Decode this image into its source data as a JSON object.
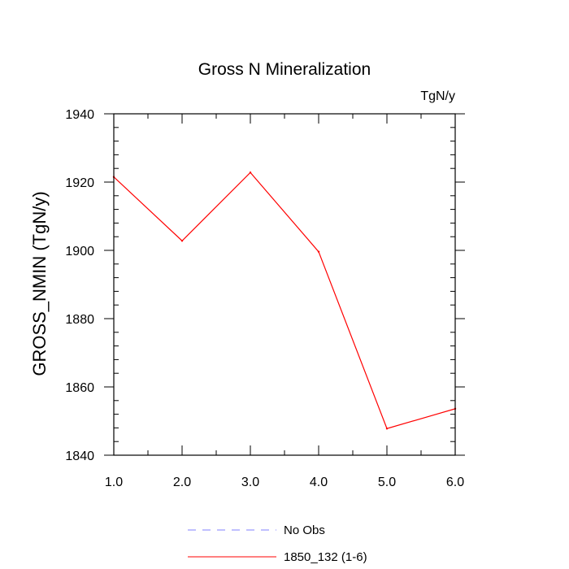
{
  "chart_data": {
    "type": "line",
    "title": "Gross N Mineralization",
    "units_label": "TgN/y",
    "xlabel": "",
    "ylabel": "GROSS_NMIN  (TgN/y)",
    "xlim": [
      1.0,
      6.0
    ],
    "ylim": [
      1840,
      1940
    ],
    "x_ticks": [
      1.0,
      2.0,
      3.0,
      4.0,
      5.0,
      6.0
    ],
    "x_tick_labels": [
      "1.0",
      "2.0",
      "3.0",
      "4.0",
      "5.0",
      "6.0"
    ],
    "y_ticks": [
      1840,
      1860,
      1880,
      1900,
      1920,
      1940
    ],
    "y_tick_labels": [
      "1840",
      "1860",
      "1880",
      "1900",
      "1920",
      "1940"
    ],
    "grid": false,
    "legend_position": "bottom",
    "series": [
      {
        "name": "1850_132 (1-6)",
        "color": "#ff0000",
        "style": "solid",
        "x": [
          1.0,
          2.0,
          3.0,
          4.0,
          5.0,
          6.0
        ],
        "values": [
          1921.5,
          1902.8,
          1922.8,
          1899.6,
          1847.8,
          1853.6
        ]
      }
    ],
    "legend": [
      {
        "label": "No Obs",
        "color": "#8080ff",
        "style": "dashed"
      },
      {
        "label": "1850_132 (1-6)",
        "color": "#ff0000",
        "style": "solid"
      }
    ]
  }
}
